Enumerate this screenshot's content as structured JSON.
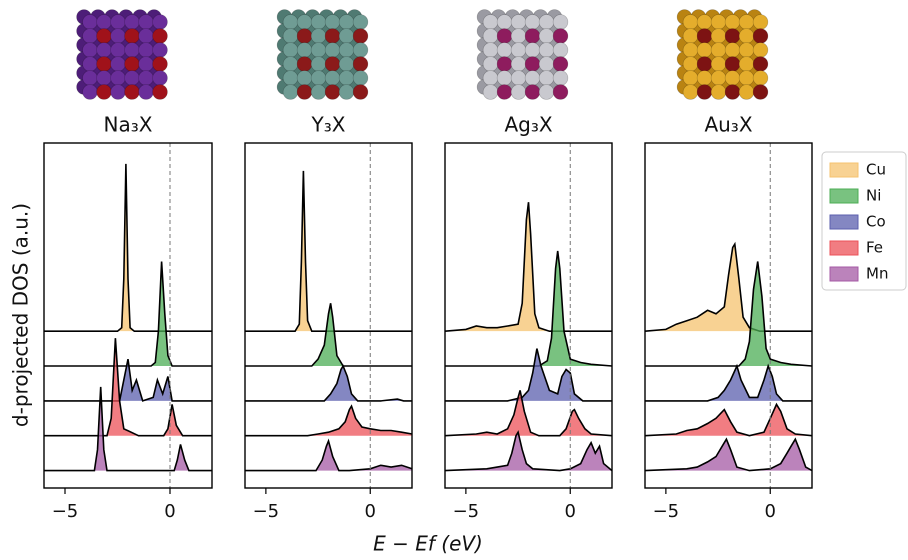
{
  "chart_data": {
    "type": "area",
    "xlabel": "E − Ef (eV)",
    "ylabel": "d-projected DOS (a.u.)",
    "xlim": [
      -6,
      2
    ],
    "xticks": [
      {
        "value": -5,
        "label": "−5"
      },
      0
    ],
    "ylim": [
      -0.5,
      9.4
    ],
    "legend": "right",
    "series": [
      {
        "name": "Cu",
        "color": "#f6c36f"
      },
      {
        "name": "Ni",
        "color": "#4cad55"
      },
      {
        "name": "Co",
        "color": "#5b5fae"
      },
      {
        "name": "Fe",
        "color": "#ec5158"
      },
      {
        "name": "Mn",
        "color": "#a45aa4"
      }
    ],
    "panels": [
      {
        "title": "Na₃X",
        "series": [
          {
            "x": [
              -6,
              -2.5,
              -2.3,
              -2.2,
              -2.1,
              -2.0,
              -1.9,
              -1.7,
              2
            ],
            "values": [
              0,
              0,
              0.1,
              1.5,
              4.8,
              1.5,
              0.1,
              0,
              0
            ]
          },
          {
            "x": [
              -6,
              -0.9,
              -0.7,
              -0.55,
              -0.4,
              -0.25,
              -0.1,
              0.1,
              2
            ],
            "values": [
              0,
              0,
              0.1,
              1.0,
              3.0,
              1.5,
              0.3,
              0,
              0
            ]
          },
          {
            "x": [
              -6,
              -2.4,
              -2.0,
              -1.8,
              -1.6,
              -1.3,
              -0.8,
              -0.6,
              -0.35,
              -0.1,
              0.1,
              2
            ],
            "values": [
              0,
              0,
              1.2,
              0.3,
              0.6,
              0,
              0.1,
              0.6,
              0.2,
              0.7,
              0,
              0
            ]
          },
          {
            "x": [
              -6,
              -3,
              -2.8,
              -2.6,
              -2.4,
              -2.2,
              -1.5,
              -0.3,
              -0.1,
              0.1,
              0.3,
              0.6,
              2
            ],
            "values": [
              0,
              0,
              0.5,
              2.8,
              1.0,
              0.2,
              0,
              0,
              0.2,
              0.9,
              0.3,
              0,
              0
            ]
          },
          {
            "x": [
              -6,
              -3.6,
              -3.45,
              -3.3,
              -3.15,
              -3.0,
              -0.2,
              0.2,
              0.35,
              0.5,
              0.7,
              0.9,
              2
            ],
            "values": [
              0,
              0,
              0.6,
              2.4,
              0.6,
              0,
              0,
              0,
              0.3,
              0.75,
              0.3,
              0,
              0
            ]
          }
        ]
      },
      {
        "title": "Y₃X",
        "series": [
          {
            "x": [
              -6,
              -3.6,
              -3.4,
              -3.3,
              -3.2,
              -3.1,
              -3.0,
              -2.8,
              2
            ],
            "values": [
              0,
              0,
              0.2,
              2.0,
              4.6,
              2.0,
              0.3,
              0,
              0
            ]
          },
          {
            "x": [
              -6,
              -2.8,
              -2.5,
              -2.2,
              -2.0,
              -1.9,
              -1.8,
              -1.6,
              -1.3,
              0,
              2
            ],
            "values": [
              0,
              0,
              0.2,
              0.6,
              1.5,
              1.8,
              1.4,
              0.3,
              0,
              0,
              0
            ]
          },
          {
            "x": [
              -6,
              -2.2,
              -1.9,
              -1.6,
              -1.4,
              -1.3,
              -1.1,
              -0.9,
              -0.6,
              0.5,
              1.3,
              1.6,
              2
            ],
            "values": [
              0,
              0,
              0.2,
              0.5,
              0.9,
              1.0,
              0.7,
              0.2,
              0,
              0,
              0.05,
              0,
              0
            ]
          },
          {
            "x": [
              -6,
              -3,
              -2.5,
              -2,
              -1.5,
              -1.2,
              -1.0,
              -0.9,
              -0.7,
              -0.4,
              0,
              0.5,
              1,
              1.5,
              2
            ],
            "values": [
              0,
              0,
              0.05,
              0.1,
              0.2,
              0.4,
              0.75,
              0.85,
              0.5,
              0.25,
              0.2,
              0.15,
              0.15,
              0.1,
              0.05
            ]
          },
          {
            "x": [
              -6,
              -2.6,
              -2.3,
              -2.1,
              -2.0,
              -1.8,
              -1.5,
              -1.0,
              0,
              0.5,
              1,
              1.5,
              2
            ],
            "values": [
              0,
              0,
              0.3,
              0.7,
              0.85,
              0.4,
              0,
              0,
              0.05,
              0.15,
              0.1,
              0.15,
              0.05
            ]
          }
        ]
      },
      {
        "title": "Ag₃X",
        "series": [
          {
            "x": [
              -6,
              -5,
              -4.5,
              -4,
              -3.5,
              -3,
              -2.5,
              -2.3,
              -2.1,
              -2.0,
              -1.9,
              -1.7,
              -1.5,
              -1,
              2
            ],
            "values": [
              0,
              0.05,
              0.15,
              0.1,
              0.1,
              0.15,
              0.2,
              0.8,
              3.2,
              3.7,
              2.8,
              0.5,
              0.1,
              0,
              0
            ]
          },
          {
            "x": [
              -6,
              -1.5,
              -1.1,
              -0.9,
              -0.7,
              -0.6,
              -0.5,
              -0.3,
              0,
              0.5,
              1,
              2
            ],
            "values": [
              0,
              0,
              0.15,
              0.8,
              2.8,
              3.3,
              2.8,
              1.0,
              0.2,
              0.1,
              0.05,
              0
            ]
          },
          {
            "x": [
              -6,
              -3,
              -2.3,
              -2.0,
              -1.8,
              -1.6,
              -1.4,
              -1.0,
              -0.6,
              -0.4,
              -0.2,
              0,
              0.2,
              0.6,
              2
            ],
            "values": [
              0,
              0,
              0.1,
              0.3,
              0.8,
              1.5,
              1.0,
              0.3,
              0.2,
              0.7,
              0.9,
              0.8,
              0.2,
              0,
              0
            ]
          },
          {
            "x": [
              -6,
              -4.5,
              -4,
              -3.5,
              -3,
              -2.7,
              -2.5,
              -2.4,
              -2.2,
              -1.9,
              -1.5,
              -0.5,
              -0.2,
              0.1,
              0.2,
              0.4,
              0.7,
              1,
              2
            ],
            "values": [
              0,
              0.05,
              0.1,
              0.05,
              0.2,
              0.6,
              1.1,
              1.3,
              0.7,
              0.1,
              0,
              0,
              0.2,
              0.7,
              0.75,
              0.5,
              0.2,
              0.05,
              0
            ]
          },
          {
            "x": [
              -6,
              -4,
              -3.5,
              -3,
              -2.8,
              -2.6,
              -2.5,
              -2.3,
              -2.1,
              -1.8,
              -0.5,
              0,
              0.5,
              0.8,
              1.0,
              1.2,
              1.4,
              1.6,
              2
            ],
            "values": [
              0,
              0.05,
              0.1,
              0.15,
              0.5,
              1.0,
              1.1,
              0.6,
              0.2,
              0.05,
              0,
              0.05,
              0.2,
              0.6,
              0.8,
              0.5,
              0.7,
              0.2,
              0
            ]
          }
        ]
      },
      {
        "title": "Au₃X",
        "series": [
          {
            "x": [
              -6,
              -5,
              -4.5,
              -4,
              -3.5,
              -3,
              -2.6,
              -2.2,
              -2.0,
              -1.8,
              -1.7,
              -1.5,
              -1.3,
              -1,
              -0.5,
              2
            ],
            "values": [
              0,
              0.05,
              0.2,
              0.3,
              0.4,
              0.6,
              0.5,
              0.7,
              1.6,
              2.4,
              2.5,
              1.5,
              0.4,
              0.1,
              0,
              0
            ]
          },
          {
            "x": [
              -6,
              -1.5,
              -1.2,
              -1.0,
              -0.8,
              -0.6,
              -0.4,
              -0.2,
              0,
              0.5,
              1,
              2
            ],
            "values": [
              0,
              0,
              0.2,
              0.7,
              2.2,
              3.0,
              2.0,
              0.5,
              0.2,
              0.1,
              0.05,
              0
            ]
          },
          {
            "x": [
              -6,
              -3,
              -2.5,
              -2.2,
              -1.9,
              -1.6,
              -1.4,
              -1.0,
              -0.6,
              -0.3,
              -0.1,
              0.1,
              0.3,
              0.6,
              2
            ],
            "values": [
              0,
              0,
              0.1,
              0.3,
              0.6,
              1.0,
              0.6,
              0.1,
              0.1,
              0.6,
              1.0,
              0.7,
              0.2,
              0,
              0
            ]
          },
          {
            "x": [
              -6,
              -4.5,
              -4,
              -3.5,
              -3,
              -2.6,
              -2.2,
              -1.9,
              -1.6,
              -1.0,
              -0.3,
              0,
              0.3,
              0.5,
              0.8,
              1.2,
              2
            ],
            "values": [
              0,
              0.05,
              0.15,
              0.2,
              0.35,
              0.5,
              0.75,
              0.4,
              0.1,
              0,
              0.1,
              0.5,
              0.9,
              0.7,
              0.2,
              0.05,
              0
            ]
          },
          {
            "x": [
              -6,
              -4,
              -3.5,
              -3,
              -2.6,
              -2.3,
              -2.1,
              -1.9,
              -1.6,
              -1,
              0,
              0.5,
              0.8,
              1.0,
              1.2,
              1.4,
              1.7,
              2
            ],
            "values": [
              0,
              0.05,
              0.1,
              0.25,
              0.4,
              0.7,
              0.9,
              0.6,
              0.1,
              0,
              0.05,
              0.2,
              0.5,
              0.7,
              0.9,
              0.6,
              0.1,
              0
            ]
          }
        ]
      }
    ]
  }
}
